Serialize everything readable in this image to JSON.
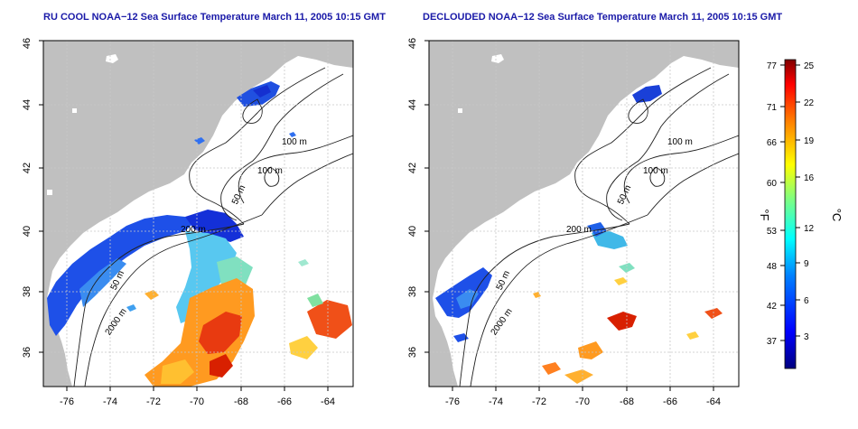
{
  "maps": [
    {
      "title": "RU COOL NOAA−12 Sea Surface Temperature March 11, 2005 10:15 GMT",
      "lon_ticks": [
        "-76",
        "-74",
        "-72",
        "-70",
        "-68",
        "-66",
        "-64"
      ],
      "lat_ticks": [
        "36",
        "38",
        "40",
        "42",
        "44",
        "46"
      ],
      "contour_labels": [
        "100 m",
        "100 m",
        "50 m",
        "200 m",
        "50 m",
        "2000 m"
      ]
    },
    {
      "title": "DECLOUDED NOAA−12 Sea Surface Temperature March 11, 2005 10:15 GMT",
      "lon_ticks": [
        "-76",
        "-74",
        "-72",
        "-70",
        "-68",
        "-66",
        "-64"
      ],
      "lat_ticks": [
        "36",
        "38",
        "40",
        "42",
        "44",
        "46"
      ],
      "contour_labels": [
        "100 m",
        "100 m",
        "50 m",
        "200 m",
        "50 m",
        "2000 m"
      ]
    }
  ],
  "colorbar": {
    "fahrenheit_label": "°F",
    "celsius_label": "°C",
    "fahrenheit_ticks": [
      "77",
      "71",
      "66",
      "60",
      "53",
      "48",
      "42",
      "37"
    ],
    "celsius_ticks": [
      "25",
      "22",
      "19",
      "16",
      "12",
      "9",
      "6",
      "3"
    ],
    "gradient_colors": [
      "#00007f",
      "#0000ff",
      "#0080ff",
      "#00ffff",
      "#80ff80",
      "#ffff00",
      "#ff8000",
      "#ff0000",
      "#7f0000"
    ]
  },
  "colors": {
    "land": "#c0c0c0",
    "title": "#1a1aa8",
    "grid": "#c8c8c8"
  }
}
